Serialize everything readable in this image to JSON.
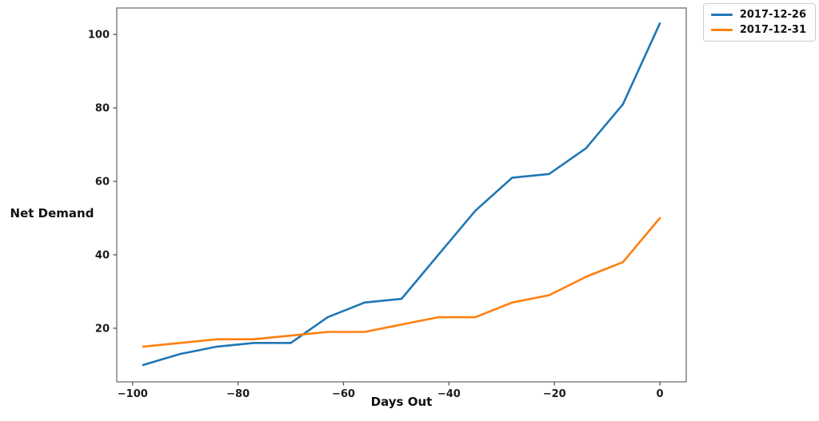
{
  "chart_data": {
    "type": "line",
    "title": "",
    "xlabel": "Days Out",
    "ylabel": "Net Demand",
    "x": [
      -98,
      -91,
      -84,
      -77,
      -70,
      -63,
      -56,
      -49,
      -42,
      -35,
      -28,
      -21,
      -14,
      -7,
      0
    ],
    "series": [
      {
        "name": "2017-12-26",
        "color": "#1f77b4",
        "values": [
          10,
          13,
          15,
          16,
          16,
          23,
          27,
          28,
          40,
          52,
          61,
          62,
          69,
          81,
          103
        ]
      },
      {
        "name": "2017-12-31",
        "color": "#ff7f0e",
        "values": [
          15,
          16,
          17,
          17,
          18,
          19,
          19,
          21,
          23,
          23,
          27,
          29,
          34,
          38,
          50
        ]
      }
    ],
    "xlim": [
      -103,
      5
    ],
    "ylim": [
      5.4,
      107.2
    ],
    "xticks": [
      -100,
      -80,
      -60,
      -40,
      -20,
      0
    ],
    "yticks": [
      20,
      40,
      60,
      80,
      100
    ],
    "grid": false,
    "legend_position": "top-right-outside",
    "spine_color": "#7a7a7a",
    "tick_color": "#555555"
  },
  "legend": {
    "items": [
      {
        "label": "2017-12-26"
      },
      {
        "label": "2017-12-31"
      }
    ]
  }
}
